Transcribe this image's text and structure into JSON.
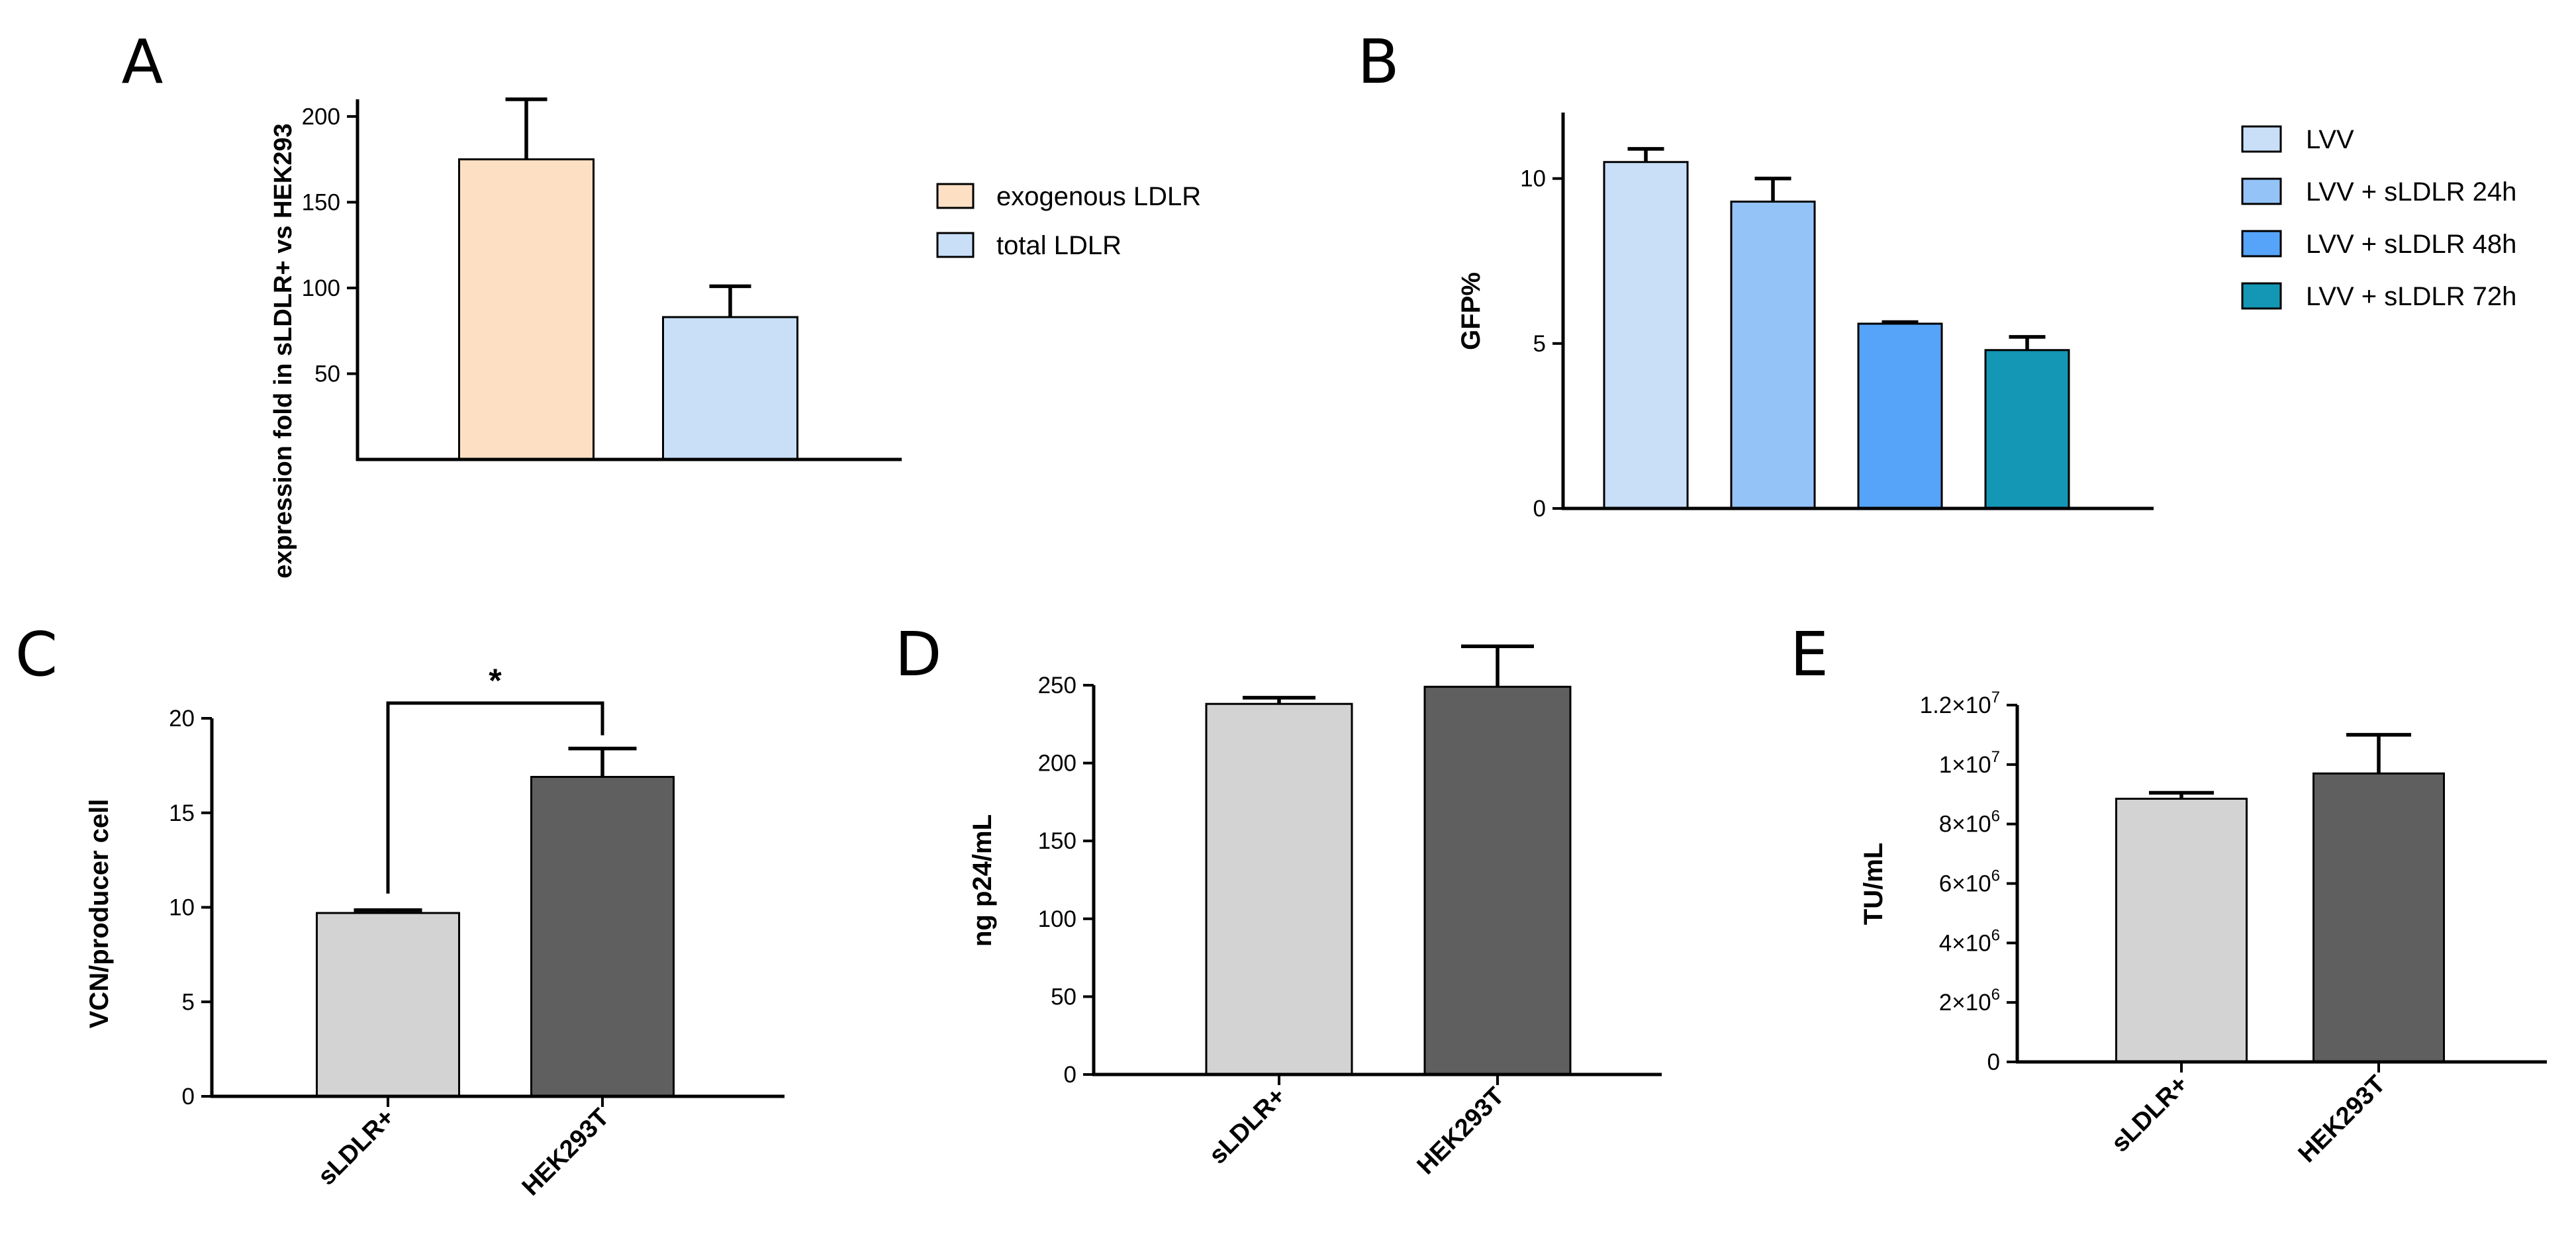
{
  "chart_data": [
    {
      "panel": "A",
      "type": "bar",
      "ylabel": "expression fold in sLDLR+ vs HEK293",
      "xlabel": "",
      "ylim": [
        0,
        210
      ],
      "yticks": [
        50,
        100,
        150,
        200
      ],
      "categories": [
        "exogenous LDLR",
        "total LDLR"
      ],
      "values": [
        175,
        83
      ],
      "errors": [
        35,
        18
      ],
      "colors": [
        "#fde0c3",
        "#c9dff8"
      ],
      "legend": [
        "exogenous LDLR",
        "total LDLR"
      ],
      "legend_position": "right"
    },
    {
      "panel": "B",
      "type": "bar",
      "ylabel": "GFP%",
      "xlabel": "",
      "ylim": [
        0,
        12
      ],
      "yticks": [
        0,
        5,
        10
      ],
      "categories": [
        "LVV",
        "LVV + sLDLR 24h",
        "LVV + sLDLR 48h",
        "LVV + sLDLR 72h"
      ],
      "values": [
        10.5,
        9.3,
        5.6,
        4.8
      ],
      "errors": [
        0.4,
        0.7,
        0.05,
        0.4
      ],
      "colors": [
        "#c9dff8",
        "#94c3f8",
        "#56a4f9",
        "#1397b5"
      ],
      "legend": [
        "LVV",
        "LVV + sLDLR 24h",
        "LVV + sLDLR 48h",
        "LVV + sLDLR 72h"
      ],
      "legend_position": "right"
    },
    {
      "panel": "C",
      "type": "bar",
      "ylabel": "VCN/producer cell",
      "xlabel": "",
      "ylim": [
        0,
        20
      ],
      "yticks": [
        0,
        5,
        10,
        15,
        20
      ],
      "categories": [
        "sLDLR+",
        "HEK293T"
      ],
      "values": [
        9.7,
        16.9
      ],
      "errors": [
        0.15,
        1.5
      ],
      "colors": [
        "#d3d3d3",
        "#5f5f5f"
      ],
      "significance": "*"
    },
    {
      "panel": "D",
      "type": "bar",
      "ylabel": "ng p24/mL",
      "xlabel": "",
      "ylim": [
        0,
        250
      ],
      "yticks": [
        0,
        50,
        100,
        150,
        200,
        250
      ],
      "categories": [
        "sLDLR+",
        "HEK293T"
      ],
      "values": [
        238,
        249
      ],
      "errors": [
        4,
        26
      ],
      "colors": [
        "#d3d3d3",
        "#5f5f5f"
      ]
    },
    {
      "panel": "E",
      "type": "bar",
      "ylabel": "TU/mL",
      "xlabel": "",
      "ylim": [
        0,
        12000000
      ],
      "yticks": [
        0,
        2000000,
        4000000,
        6000000,
        8000000,
        10000000,
        12000000
      ],
      "ytick_labels": [
        {
          "base": "0",
          "exp": ""
        },
        {
          "base": "2×10",
          "exp": "6"
        },
        {
          "base": "4×10",
          "exp": "6"
        },
        {
          "base": "6×10",
          "exp": "6"
        },
        {
          "base": "8×10",
          "exp": "6"
        },
        {
          "base": "1×10",
          "exp": "7"
        },
        {
          "base": "1.2×10",
          "exp": "7"
        }
      ],
      "categories": [
        "sLDLR+",
        "HEK293T"
      ],
      "values": [
        8850000,
        9700000
      ],
      "errors": [
        200000,
        1300000
      ],
      "colors": [
        "#d3d3d3",
        "#5f5f5f"
      ]
    }
  ]
}
